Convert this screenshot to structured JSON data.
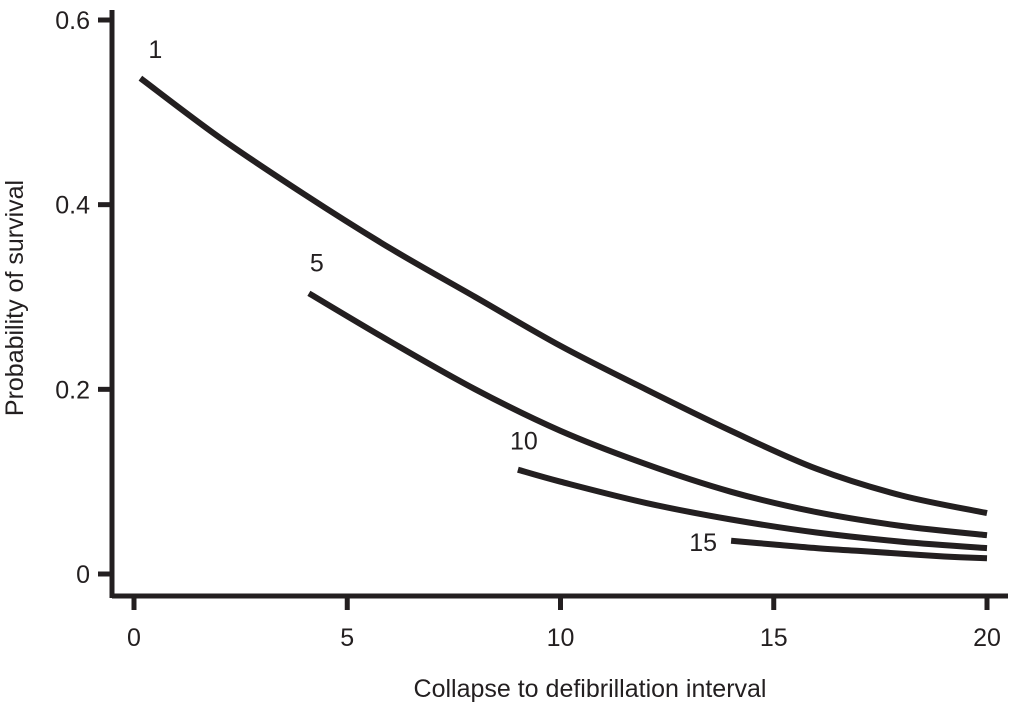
{
  "chart_data": {
    "type": "line",
    "title": "",
    "xlabel": "Collapse to defibrillation interval",
    "ylabel": "Probability of survival",
    "xlim": [
      0,
      20
    ],
    "ylim": [
      0,
      0.6
    ],
    "xticks": [
      0,
      5,
      10,
      15,
      20
    ],
    "xtick_labels": [
      "0",
      "5",
      "10",
      "15",
      "20"
    ],
    "yticks": [
      0,
      0.2,
      0.4,
      0.6
    ],
    "ytick_labels": [
      "0",
      "0.2",
      "0.4",
      "0.6"
    ],
    "grid": false,
    "legend": "none",
    "line_color": "#231f20",
    "series": [
      {
        "name": "1",
        "x": [
          0.15,
          2,
          4,
          6,
          8,
          10,
          12,
          14,
          16,
          18,
          20
        ],
        "y": [
          0.537,
          0.473,
          0.411,
          0.353,
          0.3,
          0.247,
          0.2,
          0.155,
          0.114,
          0.085,
          0.066
        ]
      },
      {
        "name": "5",
        "x": [
          4.1,
          6,
          8,
          10,
          12,
          14,
          16,
          18,
          20
        ],
        "y": [
          0.304,
          0.252,
          0.2,
          0.155,
          0.119,
          0.089,
          0.067,
          0.052,
          0.042
        ]
      },
      {
        "name": "10",
        "x": [
          9.0,
          10,
          12,
          14,
          16,
          18,
          20
        ],
        "y": [
          0.113,
          0.1,
          0.077,
          0.059,
          0.045,
          0.035,
          0.028
        ]
      },
      {
        "name": "15",
        "x": [
          14.0,
          15,
          16,
          17,
          18,
          19,
          20
        ],
        "y": [
          0.036,
          0.032,
          0.028,
          0.025,
          0.022,
          0.019,
          0.017
        ]
      }
    ]
  }
}
